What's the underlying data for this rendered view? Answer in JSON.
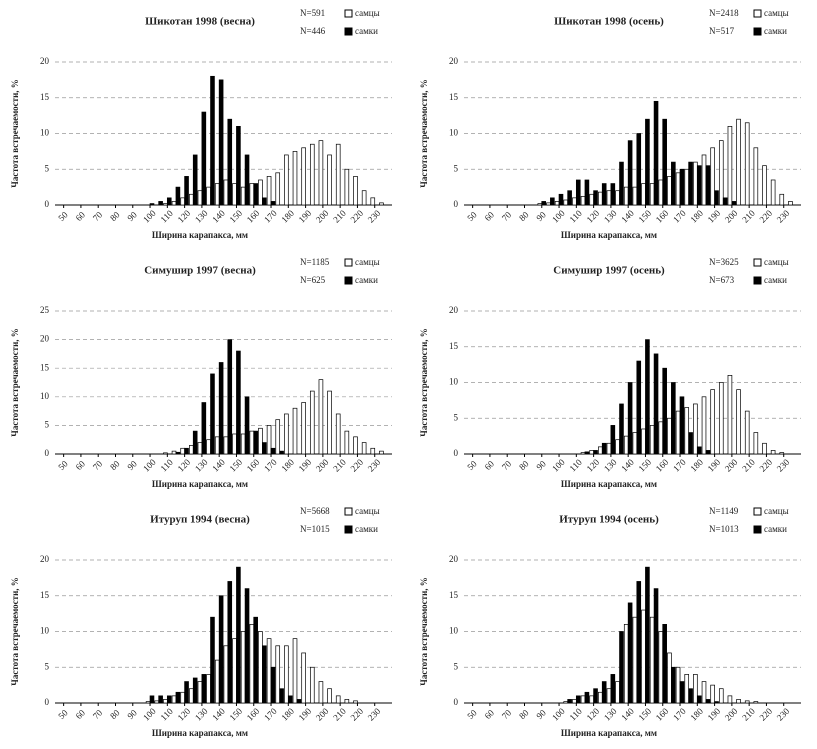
{
  "chart_data": [
    {
      "type": "bar",
      "title": "Шикотан 1998 (весна)",
      "n_labels": [
        "N=591",
        "N=446"
      ],
      "x_label": "Ширина карапакса, мм",
      "y_label": "Частота встречаемости, %",
      "x": [
        80,
        85,
        90,
        95,
        100,
        105,
        110,
        115,
        120,
        125,
        130,
        135,
        140,
        145,
        150,
        155,
        160,
        165,
        170,
        175,
        180,
        185,
        190,
        195,
        200,
        205,
        210,
        215,
        220,
        225,
        230,
        235
      ],
      "series": [
        {
          "name": "самцы",
          "color": "#ffffff",
          "values": [
            0,
            0,
            0,
            0,
            0,
            0,
            0.2,
            0.5,
            1,
            1.5,
            2,
            2.5,
            3,
            3.5,
            3,
            2.5,
            3,
            3.5,
            4,
            4.5,
            7,
            7.5,
            8,
            8.5,
            9,
            7,
            8.5,
            5,
            4,
            2,
            1,
            0.3
          ]
        },
        {
          "name": "самки",
          "color": "#000000",
          "values": [
            0,
            0,
            0,
            0,
            0.2,
            0.5,
            1,
            2.5,
            4,
            7,
            13,
            18,
            17.5,
            12,
            11,
            7,
            3,
            1,
            0.5,
            0,
            0,
            0,
            0,
            0,
            0,
            0,
            0,
            0,
            0,
            0,
            0,
            0
          ]
        }
      ],
      "xlim": [
        45,
        240
      ],
      "xticks": [
        50,
        60,
        70,
        80,
        90,
        100,
        110,
        120,
        130,
        140,
        150,
        160,
        170,
        180,
        190,
        200,
        210,
        220,
        230
      ],
      "ylim": [
        0,
        20
      ],
      "yticks": [
        0,
        5,
        10,
        15,
        20
      ],
      "grid": true
    },
    {
      "type": "bar",
      "title": "Шикотан 1998 (осень)",
      "n_labels": [
        "N=2418",
        "N=517"
      ],
      "x_label": "Ширина карапакса, мм",
      "y_label": "Частота встречаемости, %",
      "x": [
        80,
        85,
        90,
        95,
        100,
        105,
        110,
        115,
        120,
        125,
        130,
        135,
        140,
        145,
        150,
        155,
        160,
        165,
        170,
        175,
        180,
        185,
        190,
        195,
        200,
        205,
        210,
        215,
        220,
        225,
        230,
        235
      ],
      "series": [
        {
          "name": "самцы",
          "color": "#ffffff",
          "values": [
            0,
            0,
            0.2,
            0.3,
            0.5,
            0.7,
            1,
            1.2,
            1.5,
            1.8,
            2,
            2,
            2.5,
            2.5,
            3,
            3,
            3.5,
            4,
            4.5,
            5,
            6,
            7,
            8,
            9,
            11,
            12,
            11.5,
            8,
            5.5,
            3.5,
            1.5,
            0.5
          ]
        },
        {
          "name": "самки",
          "color": "#000000",
          "values": [
            0,
            0,
            0.5,
            1,
            1.5,
            2,
            3.5,
            3.5,
            2,
            3,
            3,
            6,
            9,
            10,
            12,
            14.5,
            12,
            6,
            5,
            6,
            5.5,
            5.5,
            2,
            1,
            0.5,
            0,
            0,
            0,
            0,
            0,
            0,
            0
          ]
        }
      ],
      "xlim": [
        45,
        240
      ],
      "xticks": [
        50,
        60,
        70,
        80,
        90,
        100,
        110,
        120,
        130,
        140,
        150,
        160,
        170,
        180,
        190,
        200,
        210,
        220,
        230
      ],
      "ylim": [
        0,
        20
      ],
      "yticks": [
        0,
        5,
        10,
        15,
        20
      ],
      "grid": true
    },
    {
      "type": "bar",
      "title": "Симушир 1997 (весна)",
      "n_labels": [
        "N=1185",
        "N=625"
      ],
      "x_label": "Ширина карапакса, мм",
      "y_label": "Частота встречаемости, %",
      "x": [
        80,
        85,
        90,
        95,
        100,
        105,
        110,
        115,
        120,
        125,
        130,
        135,
        140,
        145,
        150,
        155,
        160,
        165,
        170,
        175,
        180,
        185,
        190,
        195,
        200,
        205,
        210,
        215,
        220,
        225,
        230,
        235
      ],
      "series": [
        {
          "name": "самцы",
          "color": "#ffffff",
          "values": [
            0,
            0,
            0,
            0,
            0,
            0,
            0.2,
            0.5,
            1,
            1.5,
            2,
            2.5,
            3,
            3,
            3.5,
            3.5,
            4,
            4.5,
            5,
            6,
            7,
            8,
            9,
            11,
            13,
            11,
            7,
            4,
            3,
            2,
            1,
            0.5
          ]
        },
        {
          "name": "самки",
          "color": "#000000",
          "values": [
            0,
            0,
            0,
            0,
            0,
            0,
            0,
            0.3,
            1,
            4,
            9,
            14,
            16,
            20,
            18,
            10,
            4,
            2,
            1,
            0.5,
            0,
            0,
            0,
            0,
            0,
            0,
            0,
            0,
            0,
            0,
            0,
            0
          ]
        }
      ],
      "xlim": [
        45,
        240
      ],
      "xticks": [
        50,
        60,
        70,
        80,
        90,
        100,
        110,
        120,
        130,
        140,
        150,
        160,
        170,
        180,
        190,
        200,
        210,
        220,
        230
      ],
      "ylim": [
        0,
        25
      ],
      "yticks": [
        0,
        5,
        10,
        15,
        20,
        25
      ],
      "grid": true
    },
    {
      "type": "bar",
      "title": "Симушир 1997 (осень)",
      "n_labels": [
        "N=3625",
        "N=673"
      ],
      "x_label": "Ширина карапакса, мм",
      "y_label": "Частота встречаемости, %",
      "x": [
        80,
        85,
        90,
        95,
        100,
        105,
        110,
        115,
        120,
        125,
        130,
        135,
        140,
        145,
        150,
        155,
        160,
        165,
        170,
        175,
        180,
        185,
        190,
        195,
        200,
        205,
        210,
        215,
        220,
        225,
        230,
        235
      ],
      "series": [
        {
          "name": "самцы",
          "color": "#ffffff",
          "values": [
            0,
            0,
            0,
            0,
            0,
            0,
            0,
            0.2,
            0.5,
            1,
            1.5,
            2,
            2.5,
            3,
            3.5,
            4,
            4.5,
            5,
            6,
            6.5,
            7,
            8,
            9,
            10,
            11,
            9,
            6,
            3,
            1.5,
            0.5,
            0.2,
            0
          ]
        },
        {
          "name": "самки",
          "color": "#000000",
          "values": [
            0,
            0,
            0,
            0,
            0,
            0,
            0,
            0.3,
            0.5,
            1.5,
            4,
            7,
            10,
            13,
            16,
            14,
            12,
            10,
            8,
            3,
            1,
            0.5,
            0,
            0,
            0,
            0,
            0,
            0,
            0,
            0,
            0,
            0
          ]
        }
      ],
      "xlim": [
        45,
        240
      ],
      "xticks": [
        50,
        60,
        70,
        80,
        90,
        100,
        110,
        120,
        130,
        140,
        150,
        160,
        170,
        180,
        190,
        200,
        210,
        220,
        230
      ],
      "ylim": [
        0,
        20
      ],
      "yticks": [
        0,
        5,
        10,
        15,
        20
      ],
      "grid": true
    },
    {
      "type": "bar",
      "title": "Итуруп 1994 (весна)",
      "n_labels": [
        "N=5668",
        "N=1015"
      ],
      "x_label": "Ширина карапакса, мм",
      "y_label": "Частота встречаемости, %",
      "x": [
        80,
        85,
        90,
        95,
        100,
        105,
        110,
        115,
        120,
        125,
        130,
        135,
        140,
        145,
        150,
        155,
        160,
        165,
        170,
        175,
        180,
        185,
        190,
        195,
        200,
        205,
        210,
        215,
        220,
        225,
        230,
        235
      ],
      "series": [
        {
          "name": "самцы",
          "color": "#ffffff",
          "values": [
            0,
            0,
            0,
            0,
            0.2,
            0.3,
            0.5,
            1,
            1.5,
            2,
            3,
            4,
            6,
            8,
            9,
            10,
            11,
            10,
            9,
            8,
            8,
            9,
            7,
            5,
            3,
            2,
            1,
            0.5,
            0.3,
            0,
            0,
            0
          ]
        },
        {
          "name": "самки",
          "color": "#000000",
          "values": [
            0,
            0,
            0,
            0,
            1,
            1,
            1,
            1.5,
            3,
            3.5,
            4,
            12,
            15,
            17,
            19,
            16,
            12,
            8,
            5,
            2,
            1,
            0.5,
            0,
            0,
            0,
            0,
            0,
            0,
            0,
            0,
            0,
            0
          ]
        }
      ],
      "xlim": [
        45,
        240
      ],
      "xticks": [
        50,
        60,
        70,
        80,
        90,
        100,
        110,
        120,
        130,
        140,
        150,
        160,
        170,
        180,
        190,
        200,
        210,
        220,
        230
      ],
      "ylim": [
        0,
        20
      ],
      "yticks": [
        0,
        5,
        10,
        15,
        20
      ],
      "grid": true
    },
    {
      "type": "bar",
      "title": "Итуруп 1994 (осень)",
      "n_labels": [
        "N=1149",
        "N=1013"
      ],
      "x_label": "Ширина карапакса, мм",
      "y_label": "Частота встречаемости, %",
      "x": [
        80,
        85,
        90,
        95,
        100,
        105,
        110,
        115,
        120,
        125,
        130,
        135,
        140,
        145,
        150,
        155,
        160,
        165,
        170,
        175,
        180,
        185,
        190,
        195,
        200,
        205,
        210,
        215,
        220,
        225,
        230,
        235
      ],
      "series": [
        {
          "name": "самцы",
          "color": "#ffffff",
          "values": [
            0,
            0,
            0,
            0,
            0,
            0.2,
            0.5,
            1,
            1,
            1.5,
            2,
            3,
            11,
            12,
            13,
            12,
            10,
            7,
            5,
            4,
            4,
            3,
            2.5,
            2,
            1,
            0.5,
            0.3,
            0.2,
            0,
            0,
            0,
            0
          ]
        },
        {
          "name": "самки",
          "color": "#000000",
          "values": [
            0,
            0,
            0,
            0,
            0,
            0.5,
            1,
            1.5,
            2,
            3,
            4,
            10,
            14,
            17,
            19,
            16,
            11,
            5,
            3,
            2,
            1,
            0.5,
            0.2,
            0,
            0,
            0,
            0,
            0,
            0,
            0,
            0,
            0
          ]
        }
      ],
      "xlim": [
        45,
        240
      ],
      "xticks": [
        50,
        60,
        70,
        80,
        90,
        100,
        110,
        120,
        130,
        140,
        150,
        160,
        170,
        180,
        190,
        200,
        210,
        220,
        230
      ],
      "ylim": [
        0,
        20
      ],
      "yticks": [
        0,
        5,
        10,
        15,
        20
      ],
      "grid": true
    }
  ]
}
